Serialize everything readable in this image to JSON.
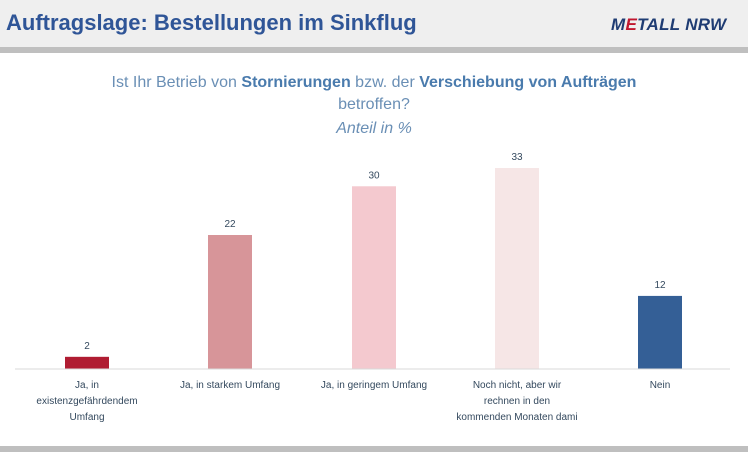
{
  "header": {
    "title": "Auftragslage: Bestellungen im Sinkflug",
    "logo_prefix": "M",
    "logo_accent": "E",
    "logo_suffix": "TALL NRW"
  },
  "question": {
    "part1": "Ist Ihr Betrieb von ",
    "bold1": "Stornierungen",
    "part2": " bzw. der ",
    "bold2": "Verschiebung von Aufträgen",
    "line2": "betroffen?"
  },
  "chart_data": {
    "type": "bar",
    "subtitle": "Anteil in %",
    "categories": [
      "Ja, in existenzgefährdendem Umfang",
      "Ja, in starkem Umfang",
      "Ja, in geringem Umfang",
      "Noch nicht, aber wir rechnen in den kommenden Monaten dami",
      "Nein"
    ],
    "category_lines": [
      [
        "Ja, in",
        "existenzgefährdendem",
        "Umfang"
      ],
      [
        "Ja, in starkem Umfang"
      ],
      [
        "Ja, in geringem Umfang"
      ],
      [
        "Noch nicht, aber wir",
        "rechnen in den",
        "kommenden Monaten dami"
      ],
      [
        "Nein"
      ]
    ],
    "values": [
      2,
      22,
      30,
      33,
      12
    ],
    "colors": [
      "#b01c32",
      "#d79599",
      "#f4c9cf",
      "#f6e6e6",
      "#345f96"
    ],
    "ylim": [
      0,
      33
    ],
    "grid": false
  },
  "colors": {
    "title": "#2f5597",
    "question": "#6a8fb5",
    "header_bg": "#efefef",
    "rule": "#bfbfbf"
  }
}
